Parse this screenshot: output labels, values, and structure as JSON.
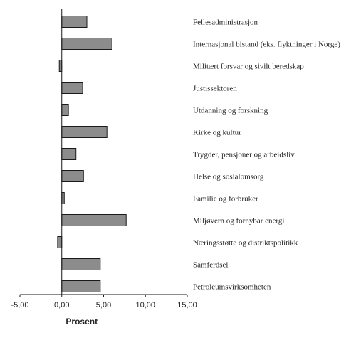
{
  "chart_data": {
    "type": "bar",
    "orientation": "horizontal",
    "categories": [
      "Fellesadministrasjon",
      "Internasjonal bistand  (eks. flyktninger i Norge)",
      "Militært forsvar og sivilt beredskap",
      "Justissektoren",
      "Utdanning og forskning",
      "Kirke og kultur",
      "Trygder, pensjoner og arbeidsliv",
      "Helse og sosialomsorg",
      "Familie og forbruker",
      "Miljøvern og fornybar energi",
      "Næringsstøtte og distriktspolitikk",
      "Samferdsel",
      "Petroleumsvirksomheten"
    ],
    "values": [
      3.0,
      6.0,
      -0.3,
      2.5,
      0.8,
      5.4,
      1.7,
      2.6,
      0.3,
      7.7,
      -0.5,
      4.6,
      4.6
    ],
    "xlabel": "Prosent",
    "xlim": [
      -5,
      15
    ],
    "x_ticks": [
      "-5,00",
      "0,00",
      "5,00",
      "10,00",
      "15,00"
    ],
    "grid": false,
    "colors": {
      "bar_fill": "#8c8c8c",
      "bar_stroke": "#1a1a1a"
    }
  }
}
